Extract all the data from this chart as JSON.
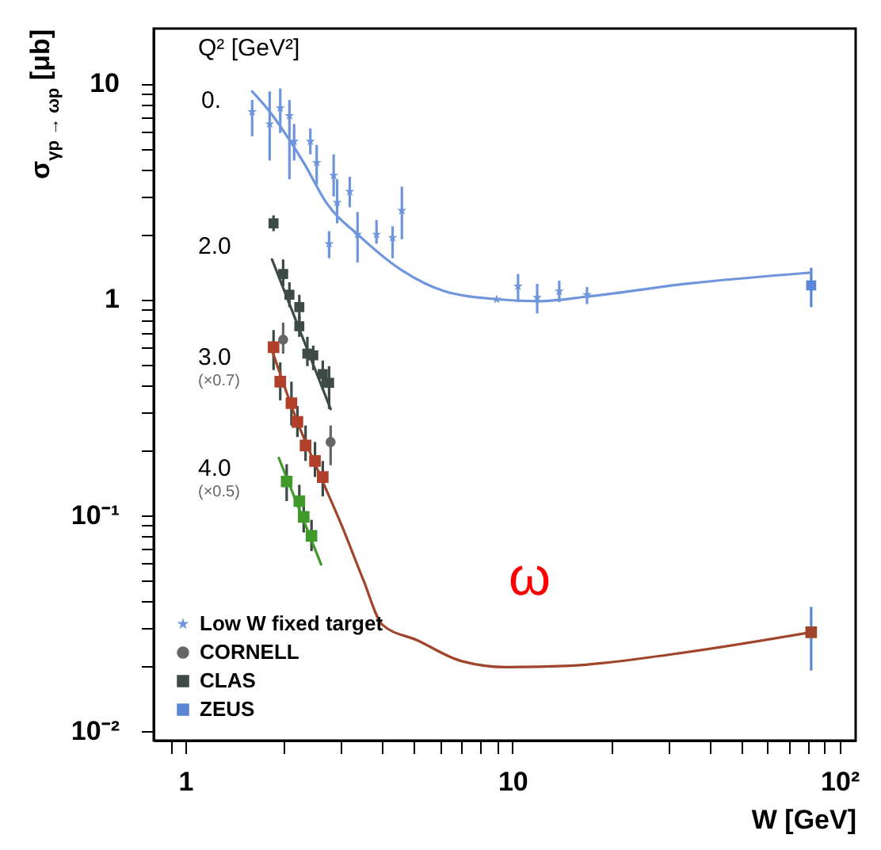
{
  "chart_data": {
    "type": "scatter",
    "xlabel": "W [GeV]",
    "ylabel": "σ$_{γp → ωp}$ [μb]",
    "log": "xy",
    "grid": false,
    "legend": "bottom left",
    "xlim": [
      0.8,
      112
    ],
    "ylim": [
      0.009,
      18
    ],
    "xticks": [
      {
        "value": 0.9,
        "label": null
      },
      1,
      {
        "value": 2,
        "label": null
      },
      {
        "value": 3,
        "label": null
      },
      {
        "value": 4,
        "label": null
      },
      {
        "value": 5,
        "label": null
      },
      {
        "value": 6,
        "label": null
      },
      {
        "value": 7,
        "label": null
      },
      {
        "value": 8,
        "label": null
      },
      {
        "value": 9,
        "label": null
      },
      10,
      {
        "value": 20,
        "label": null
      },
      {
        "value": 30,
        "label": null
      },
      {
        "value": 40,
        "label": null
      },
      {
        "value": 50,
        "label": null
      },
      {
        "value": 60,
        "label": null
      },
      {
        "value": 70,
        "label": null
      },
      {
        "value": 80,
        "label": null
      },
      {
        "value": 90,
        "label": null
      },
      {
        "value": 100,
        "label": "10²"
      }
    ],
    "yticks": [
      {
        "value": 0.01,
        "label": "10⁻²"
      },
      {
        "value": 0.02,
        "label": null
      },
      {
        "value": 0.03,
        "label": null
      },
      {
        "value": 0.04,
        "label": null
      },
      {
        "value": 0.05,
        "label": null
      },
      {
        "value": 0.06,
        "label": null
      },
      {
        "value": 0.07,
        "label": null
      },
      {
        "value": 0.08,
        "label": null
      },
      {
        "value": 0.09,
        "label": null
      },
      {
        "value": 0.1,
        "label": "10⁻¹"
      },
      {
        "value": 0.2,
        "label": null
      },
      {
        "value": 0.3,
        "label": null
      },
      {
        "value": 0.4,
        "label": null
      },
      {
        "value": 0.5,
        "label": null
      },
      {
        "value": 0.6,
        "label": null
      },
      {
        "value": 0.7,
        "label": null
      },
      {
        "value": 0.8,
        "label": null
      },
      {
        "value": 0.9,
        "label": null
      },
      1,
      {
        "value": 2,
        "label": null
      },
      {
        "value": 3,
        "label": null
      },
      {
        "value": 4,
        "label": null
      },
      {
        "value": 5,
        "label": null
      },
      {
        "value": 6,
        "label": null
      },
      {
        "value": 7,
        "label": null
      },
      {
        "value": 8,
        "label": null
      },
      {
        "value": 9,
        "label": null
      },
      10
    ],
    "annotations": [
      "Q² [GeV²]",
      "0.",
      "2.0",
      "3.0",
      "(×0.7)",
      "4.0",
      "(×0.5)",
      "ω"
    ],
    "series": [
      {
        "name": "Low W fixed target",
        "type": "scatter",
        "marker": "star",
        "color": "#6f96dc",
        "x": [
          1.6,
          1.81,
          1.95,
          2.08,
          2.15,
          2.41,
          2.52,
          2.84,
          2.91,
          3.18,
          2.75,
          3.36,
          3.84,
          4.3,
          4.59,
          8.95,
          10.4,
          11.9,
          13.9,
          16.9
        ],
        "values": [
          7.4,
          6.5,
          7.7,
          7.1,
          5.4,
          5.4,
          4.3,
          3.75,
          2.81,
          3.16,
          1.81,
          2.0,
          2.0,
          1.93,
          2.58,
          1.0,
          1.15,
          1.02,
          1.09,
          1.05
        ],
        "errors": [
          [
            5.7,
            8.4
          ],
          [
            4.4,
            9.2
          ],
          [
            5.9,
            9.5
          ],
          [
            3.6,
            8.4
          ],
          [
            4.4,
            6.5
          ],
          [
            4.7,
            6.2
          ],
          [
            3.4,
            5.2
          ],
          [
            3.0,
            4.7
          ],
          [
            2.25,
            3.6
          ],
          [
            2.67,
            3.7
          ],
          [
            1.55,
            2.07
          ],
          [
            1.48,
            2.54
          ],
          [
            1.81,
            2.33
          ],
          [
            1.55,
            2.18
          ],
          [
            1.9,
            3.33
          ],
          null,
          [
            0.97,
            1.31
          ],
          [
            0.86,
            1.18
          ],
          [
            0.97,
            1.22
          ],
          [
            0.95,
            1.14
          ]
        ],
        "colors": [
          "#6f96dc",
          "#6f96dc",
          "#6f96dc",
          "#6f96dc",
          "#6f96dc",
          "#6f96dc",
          "#6f96dc",
          "#6f96dc",
          "#6f96dc",
          "#6f96dc",
          "#6f96dc",
          "#6f96dc",
          "#6f96dc",
          "#6f96dc",
          "#6f96dc",
          "#6f96dc",
          "#6f96dc",
          "#6f96dc",
          "#6f96dc",
          "#6f96dc"
        ]
      },
      {
        "name": "CORNELL",
        "type": "scatter",
        "marker": "circle",
        "color": "#666666",
        "x": [
          1.99,
          2.78
        ],
        "values": [
          0.65,
          0.218
        ],
        "errors": [
          [
            0.56,
            0.78
          ],
          [
            0.17,
            0.26
          ]
        ]
      },
      {
        "name": "CLAS",
        "type": "scatter",
        "marker": "square",
        "color": "#3d4a45",
        "x": [
          1.86,
          1.99,
          2.08,
          2.23,
          2.23,
          2.36,
          2.46,
          2.63,
          2.75,
          1.86,
          1.95,
          2.11,
          2.2,
          2.33,
          2.49,
          2.63,
          2.04,
          2.23,
          2.3,
          2.43
        ],
        "values": [
          2.25,
          1.31,
          1.05,
          0.92,
          0.75,
          0.56,
          0.55,
          0.45,
          0.41,
          0.6,
          0.415,
          0.33,
          0.27,
          0.21,
          0.178,
          0.15,
          0.143,
          0.116,
          0.098,
          0.08
        ],
        "errors": [
          [
            2.07,
            2.45
          ],
          [
            1.15,
            1.53
          ],
          [
            0.92,
            1.2
          ],
          [
            0.79,
            1.05
          ],
          [
            0.67,
            0.84
          ],
          [
            0.49,
            0.67
          ],
          [
            0.47,
            0.61
          ],
          [
            0.38,
            0.52
          ],
          [
            0.31,
            0.49
          ],
          [
            0.47,
            0.72
          ],
          [
            0.34,
            0.51
          ],
          [
            0.26,
            0.415
          ],
          [
            0.23,
            0.32
          ],
          [
            0.178,
            0.26
          ],
          [
            0.15,
            0.218
          ],
          [
            0.122,
            0.178
          ],
          [
            0.116,
            0.172
          ],
          [
            0.098,
            0.138
          ],
          [
            0.083,
            0.112
          ],
          [
            0.068,
            0.095
          ]
        ],
        "colors": [
          "#3d4a45",
          "#3d4a45",
          "#3d4a45",
          "#3d4a45",
          "#3d4a45",
          "#3d4a45",
          "#3d4a45",
          "#3d4a45",
          "#3d4a45",
          "#b0402a",
          "#b0402a",
          "#b0402a",
          "#b0402a",
          "#b0402a",
          "#b0402a",
          "#b0402a",
          "#3f9a2a",
          "#3f9a2a",
          "#3f9a2a",
          "#3f9a2a"
        ]
      },
      {
        "name": "ZEUS",
        "type": "scatter",
        "marker": "square",
        "color": "#5b86d6",
        "x": [
          81.9,
          81.9
        ],
        "values": [
          1.16,
          0.0286
        ],
        "errors": [
          [
            0.92,
            1.4
          ],
          [
            0.019,
            0.0375
          ]
        ],
        "colors": [
          "#5b86d6",
          "#a0442c"
        ]
      },
      {
        "type": "line",
        "color": "#6f96dc",
        "x": [
          1.6,
          1.8,
          2.0,
          2.3,
          2.7,
          3.4,
          4.6,
          6.2,
          9,
          12,
          17,
          34,
          82
        ],
        "values": [
          9.2,
          7.5,
          6.0,
          4.3,
          2.8,
          1.97,
          1.36,
          1.09,
          1.0,
          0.98,
          1.03,
          1.18,
          1.33
        ]
      },
      {
        "type": "line",
        "color": "#3d4a45",
        "x": [
          1.84,
          2.78
        ],
        "values": [
          1.53,
          0.31
        ]
      },
      {
        "type": "line",
        "color": "#a0442c",
        "x": [
          1.82,
          2.2,
          2.63,
          3.0,
          3.5,
          4.0,
          5.1,
          7,
          9.6,
          15,
          30,
          82
        ],
        "values": [
          0.61,
          0.27,
          0.143,
          0.09,
          0.05,
          0.031,
          0.0263,
          0.021,
          0.0197,
          0.02,
          0.0225,
          0.0286
        ]
      },
      {
        "type": "line",
        "color": "#3f9a2a",
        "x": [
          1.93,
          2.6
        ],
        "values": [
          0.184,
          0.059
        ]
      }
    ]
  }
}
